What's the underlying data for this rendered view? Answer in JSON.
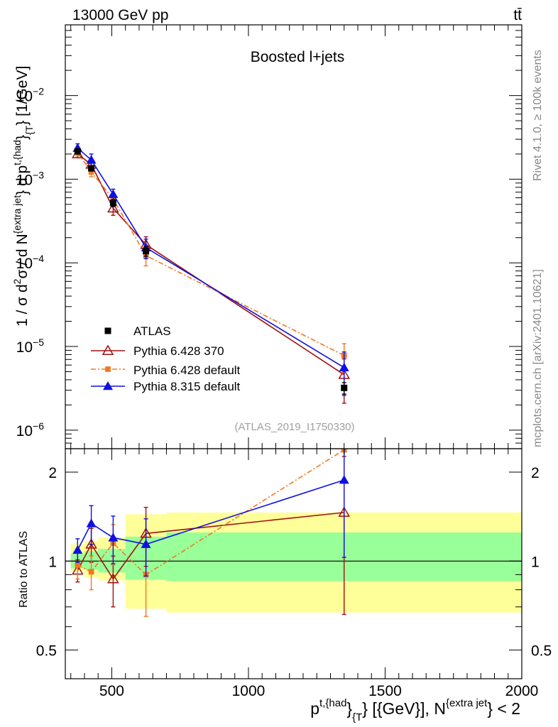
{
  "header": {
    "energy_label": "13000 GeV pp",
    "process_label": "tt̄"
  },
  "side_labels": {
    "rivet": "Rivet 4.1.0, ≥ 100k events",
    "source": "mcplots.cern.ch [arXiv:2401.10621]"
  },
  "chart_data": {
    "type": "line",
    "title": "Boosted l+jets",
    "analysis_id": "(ATLAS_2019_I1750330)",
    "xlabel": {
      "base": "p",
      "sup1": "t,{had",
      "mid1": "}",
      "sub1": "{T",
      "mid2": "} [{GeV}], N",
      "sup2": "{extra jet",
      "tail": "} < 2"
    },
    "ylabel": {
      "part1": "1 / σ d",
      "sup1": "2",
      "part2": "σ / d N",
      "sup2": "{extra jet",
      "part3": "} d p",
      "sup3": "t,{had",
      "part4": "}",
      "sub4": "{T",
      "part5": "} [1/GeV]"
    },
    "ratio_ylabel": "Ratio to ATLAS",
    "xlim": [
      330,
      2000
    ],
    "ylim": [
      6e-07,
      0.07
    ],
    "ratio_ylim": [
      0.4,
      2.4
    ],
    "x_ticks": [
      "500",
      "1000",
      "1500",
      "2000"
    ],
    "y_ticks": [
      {
        "base": "10",
        "exp": "−2"
      },
      {
        "base": "10",
        "exp": "−3"
      },
      {
        "base": "10",
        "exp": "−4"
      },
      {
        "base": "10",
        "exp": "−5"
      },
      {
        "base": "10",
        "exp": "−6"
      }
    ],
    "ratio_ticks": [
      "2",
      "1",
      "0.5"
    ],
    "data": {
      "name": "ATLAS",
      "x": [
        375,
        425,
        505,
        625,
        1350
      ],
      "y": [
        0.00215,
        0.00135,
        0.00052,
        0.000138,
        3.2e-06
      ],
      "yerr": [
        0.00015,
        0.0001,
        5e-05,
        1.8e-05,
        5e-07
      ]
    },
    "band": [
      {
        "xlo": 350,
        "xhi": 400,
        "inner": [
          0.945,
          1.06
        ],
        "outer": [
          0.92,
          1.14
        ]
      },
      {
        "xlo": 400,
        "xhi": 450,
        "inner": [
          0.935,
          1.08
        ],
        "outer": [
          0.88,
          1.17
        ]
      },
      {
        "xlo": 450,
        "xhi": 550,
        "inner": [
          0.915,
          1.1
        ],
        "outer": [
          0.86,
          1.2
        ]
      },
      {
        "xlo": 550,
        "xhi": 700,
        "inner": [
          0.865,
          1.21
        ],
        "outer": [
          0.69,
          1.44
        ]
      },
      {
        "xlo": 700,
        "xhi": 2000,
        "inner": [
          0.855,
          1.25
        ],
        "outer": [
          0.67,
          1.46
        ]
      }
    ],
    "series": [
      {
        "name": "Pythia 6.428 370",
        "color": "#a01010",
        "marker": "open-triangle",
        "dash": "",
        "x": [
          375,
          425,
          505,
          625,
          1350
        ],
        "y": [
          0.002,
          0.0015,
          0.00045,
          0.000165,
          4.6e-06
        ],
        "yerr": [
          0.0002,
          0.0002,
          8e-05,
          4e-05,
          2.5e-06
        ],
        "ratio": [
          0.93,
          1.14,
          0.87,
          1.24,
          1.46
        ],
        "ratio_err": [
          0.08,
          0.15,
          0.17,
          0.28,
          0.8
        ]
      },
      {
        "name": "Pythia 6.428 default",
        "color": "#f07820",
        "marker": "square",
        "dash": "7 3 2 3",
        "x": [
          375,
          425,
          505,
          625,
          1350
        ],
        "y": [
          0.0021,
          0.00122,
          0.00058,
          0.000122,
          7.8e-06
        ],
        "yerr": [
          0.0002,
          0.00015,
          8e-05,
          3e-05,
          3e-06
        ],
        "ratio": [
          0.97,
          0.92,
          1.15,
          0.9,
          2.38
        ],
        "ratio_err": [
          0.1,
          0.12,
          0.18,
          0.25,
          0.9
        ]
      },
      {
        "name": "Pythia 8.315 default",
        "color": "#1010e0",
        "marker": "triangle",
        "dash": "",
        "x": [
          375,
          425,
          505,
          625,
          1350
        ],
        "y": [
          0.00235,
          0.0017,
          0.00066,
          0.000152,
          5.6e-06
        ],
        "yerr": [
          0.0003,
          0.0003,
          0.0001,
          4e-05,
          3e-06
        ],
        "ratio": [
          1.09,
          1.34,
          1.2,
          1.14,
          1.88
        ],
        "ratio_err": [
          0.1,
          0.2,
          0.22,
          0.25,
          0.85
        ]
      }
    ]
  }
}
